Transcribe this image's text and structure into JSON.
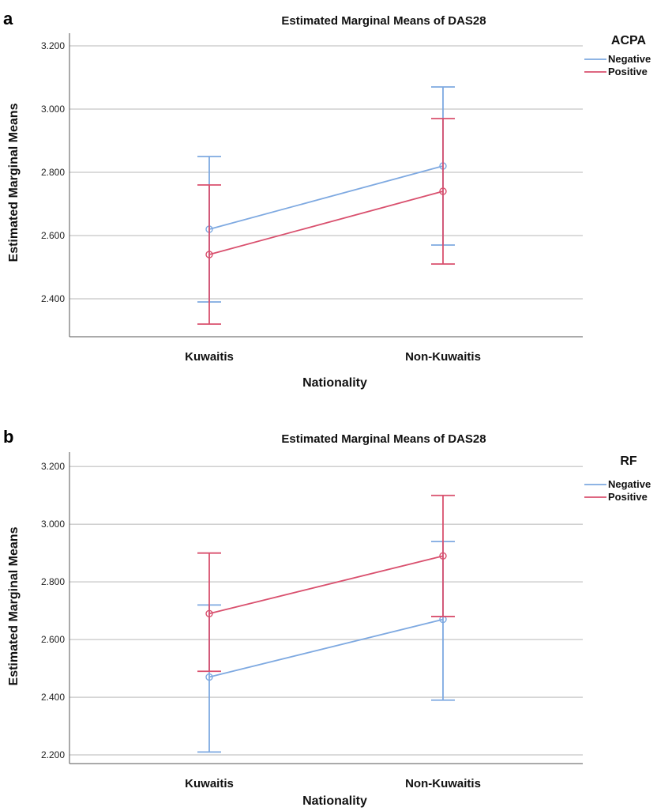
{
  "chart_data": [
    {
      "panel": "a",
      "type": "line",
      "title": "Estimated Marginal Means of DAS28",
      "xlabel": "Nationality",
      "ylabel": "Estimated Marginal Means",
      "categories": [
        "Kuwaitis",
        "Non-Kuwaitis"
      ],
      "ylim": [
        2.28,
        3.24
      ],
      "yticks": [
        "2.400",
        "2.600",
        "2.800",
        "3.000",
        "3.200"
      ],
      "legend_title": "ACPA",
      "legend_position": "right",
      "grid": true,
      "series": [
        {
          "name": "Negative",
          "color": "#7ea9e1",
          "values": [
            2.62,
            2.82
          ],
          "lower": [
            2.39,
            2.57
          ],
          "upper": [
            2.85,
            3.07
          ]
        },
        {
          "name": "Positive",
          "color": "#d9506e",
          "values": [
            2.54,
            2.74
          ],
          "lower": [
            2.32,
            2.51
          ],
          "upper": [
            2.76,
            2.97
          ]
        }
      ]
    },
    {
      "panel": "b",
      "type": "line",
      "title": "Estimated Marginal Means of DAS28",
      "xlabel": "Nationality",
      "ylabel": "Estimated Marginal Means",
      "categories": [
        "Kuwaitis",
        "Non-Kuwaitis"
      ],
      "ylim": [
        2.17,
        3.25
      ],
      "yticks": [
        "2.200",
        "2.400",
        "2.600",
        "2.800",
        "3.000",
        "3.200"
      ],
      "legend_title": "RF",
      "legend_position": "right",
      "grid": true,
      "series": [
        {
          "name": "Negative",
          "color": "#7ea9e1",
          "values": [
            2.47,
            2.67
          ],
          "lower": [
            2.21,
            2.39
          ],
          "upper": [
            2.72,
            2.94
          ]
        },
        {
          "name": "Positive",
          "color": "#d9506e",
          "values": [
            2.69,
            2.89
          ],
          "lower": [
            2.49,
            2.68
          ],
          "upper": [
            2.9,
            3.1
          ]
        }
      ]
    }
  ]
}
